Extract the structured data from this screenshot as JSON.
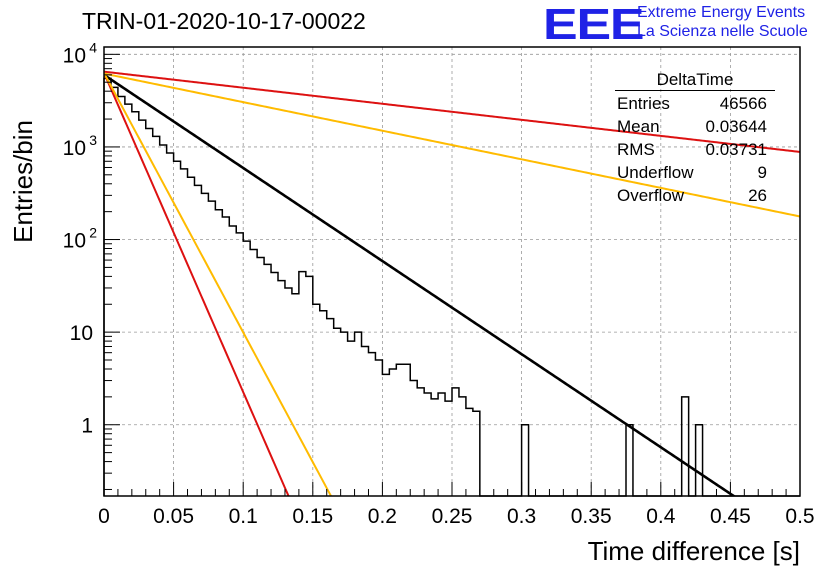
{
  "title": "TRIN-01-2020-10-17-00022",
  "logo": {
    "text": "EEE",
    "line1": "Extreme Energy Events",
    "line2": "La Scienza nelle Scuole"
  },
  "stats": {
    "name": "DeltaTime",
    "rows": [
      {
        "label": "Entries",
        "value": "46566"
      },
      {
        "label": "Mean",
        "value": "0.03644"
      },
      {
        "label": "RMS",
        "value": "0.03731"
      },
      {
        "label": "Underflow",
        "value": "9"
      },
      {
        "label": "Overflow",
        "value": "26"
      }
    ]
  },
  "chart_data": {
    "type": "histogram",
    "xlabel": "Time difference [s]",
    "ylabel": "Entries/bin",
    "xlim": [
      0,
      0.5
    ],
    "ylim": [
      0.17,
      12000
    ],
    "log_y": true,
    "grid": true,
    "x_ticks": [
      "0",
      "0.05",
      "0.1",
      "0.15",
      "0.2",
      "0.25",
      "0.3",
      "0.35",
      "0.4",
      "0.45",
      "0.5"
    ],
    "x_tick_values": [
      0,
      0.05,
      0.1,
      0.15,
      0.2,
      0.25,
      0.3,
      0.35,
      0.4,
      0.45,
      0.5
    ],
    "y_tick_values": [
      10000,
      1000,
      100,
      10,
      1
    ],
    "y_ticks": [
      {
        "base": "10",
        "exp": "4"
      },
      {
        "base": "10",
        "exp": "3"
      },
      {
        "base": "10",
        "exp": "2"
      },
      {
        "base": "10",
        "exp": ""
      },
      {
        "base": "1",
        "exp": ""
      }
    ],
    "bin_width": 0.005,
    "bin_counts": [
      5500,
      4400,
      3500,
      2900,
      2400,
      1950,
      1580,
      1300,
      1050,
      860,
      700,
      580,
      470,
      385,
      315,
      260,
      210,
      175,
      140,
      118,
      96,
      78,
      64,
      54,
      44,
      36,
      30,
      26,
      45,
      40,
      20,
      17,
      14,
      11,
      10,
      8,
      10,
      7,
      6,
      5,
      3.5,
      4,
      4.5,
      4.5,
      3,
      2.5,
      2.2,
      1.9,
      2.2,
      1.8,
      2.5,
      2.0,
      1.5,
      1.4,
      0,
      0,
      0,
      0,
      0,
      0,
      1,
      0,
      0,
      0,
      0,
      0,
      0,
      0,
      0,
      0,
      0,
      0,
      0,
      0,
      0,
      1,
      0,
      0,
      0,
      0,
      0,
      0,
      0,
      2,
      0,
      1,
      0,
      0,
      0,
      0,
      0,
      0,
      0,
      0,
      0,
      0,
      0,
      0,
      0,
      0
    ],
    "bin_counts_note_visible_tail": [
      0.255,
      0.26,
      0.265
    ],
    "fits": [
      {
        "color": "#000000",
        "A": 6000,
        "tau": 0.0432
      },
      {
        "color": "#dd1111",
        "A": 6500,
        "tau": 0.2505
      },
      {
        "color": "#ffbb00",
        "A": 6200,
        "tau": 0.1407
      },
      {
        "color": "#dd1111",
        "A": 6300,
        "tau": 0.0126
      },
      {
        "color": "#ffbb00",
        "A": 6300,
        "tau": 0.0155
      }
    ]
  }
}
